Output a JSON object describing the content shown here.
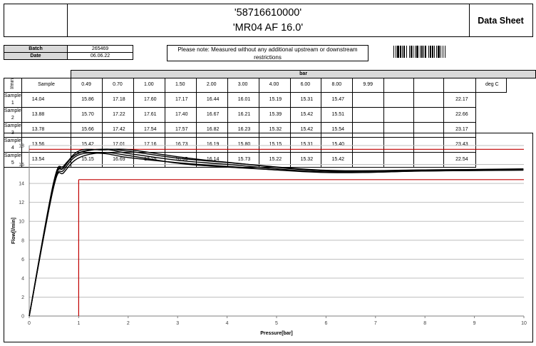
{
  "header": {
    "part_number": "'58716610000'",
    "product": "'MR04 AF 16.0'",
    "doc_type": "Data Sheet"
  },
  "info": {
    "batch_label": "Batch",
    "batch_value": "265469",
    "date_label": "Date",
    "date_value": "06.06.22",
    "note": "Please note: Measured without any additional upstream or downstream restrictions"
  },
  "table": {
    "unit_label": "bar",
    "flow_unit": "l/min",
    "sample_header": "Sample",
    "pressures": [
      "0.49",
      "0.70",
      "1.00",
      "1.50",
      "2.00",
      "3.00",
      "4.00",
      "6.00",
      "8.00",
      "9.99"
    ],
    "temp_header": "deg C",
    "rows": [
      {
        "name": "Sample 1",
        "values": [
          "14.04",
          "15.86",
          "17.18",
          "17.60",
          "17.17",
          "16.44",
          "16.01",
          "15.19",
          "15.31",
          "15.47"
        ],
        "temp": "22.17"
      },
      {
        "name": "Sample 2",
        "values": [
          "13.88",
          "15.70",
          "17.22",
          "17.61",
          "17.40",
          "16.67",
          "16.21",
          "15.39",
          "15.42",
          "15.51"
        ],
        "temp": "22.66"
      },
      {
        "name": "Sample 3",
        "values": [
          "13.78",
          "15.66",
          "17.42",
          "17.54",
          "17.57",
          "16.82",
          "16.23",
          "15.32",
          "15.42",
          "15.54"
        ],
        "temp": "23.17"
      },
      {
        "name": "Sample 4",
        "values": [
          "13.56",
          "15.42",
          "17.01",
          "17.16",
          "16.73",
          "16.19",
          "15.80",
          "15.15",
          "15.31",
          "15.40"
        ],
        "temp": "23.43"
      },
      {
        "name": "Sample 5",
        "values": [
          "13.54",
          "15.15",
          "16.69",
          "17.25",
          "16.95",
          "16.14",
          "15.73",
          "15.22",
          "15.32",
          "15.42"
        ],
        "temp": "22.54"
      }
    ]
  },
  "chart_data": {
    "type": "line",
    "title": "",
    "xlabel": "Pressure[bar]",
    "ylabel": "Flow[l/min]",
    "xlim": [
      0,
      10
    ],
    "ylim": [
      0,
      18
    ],
    "xticks": [
      "0",
      "1",
      "2",
      "3",
      "4",
      "5",
      "6",
      "7",
      "8",
      "9",
      "10"
    ],
    "yticks": [
      "0",
      "2",
      "4",
      "6",
      "8",
      "10",
      "12",
      "14",
      "16",
      "18"
    ],
    "grid": true,
    "series_color": "#000000",
    "limit_color": "#c00000",
    "series": [
      {
        "x": [
          0,
          0.49,
          0.7,
          1.0,
          1.5,
          2.0,
          3.0,
          4.0,
          6.0,
          8.0,
          9.99
        ],
        "values": [
          0,
          14.04,
          15.86,
          17.18,
          17.6,
          17.17,
          16.44,
          16.01,
          15.19,
          15.31,
          15.47
        ]
      },
      {
        "x": [
          0,
          0.49,
          0.7,
          1.0,
          1.5,
          2.0,
          3.0,
          4.0,
          6.0,
          8.0,
          9.99
        ],
        "values": [
          0,
          13.88,
          15.7,
          17.22,
          17.61,
          17.4,
          16.67,
          16.21,
          15.39,
          15.42,
          15.51
        ]
      },
      {
        "x": [
          0,
          0.49,
          0.7,
          1.0,
          1.5,
          2.0,
          3.0,
          4.0,
          6.0,
          8.0,
          9.99
        ],
        "values": [
          0,
          13.78,
          15.66,
          17.42,
          17.54,
          17.57,
          16.82,
          16.23,
          15.32,
          15.42,
          15.54
        ]
      },
      {
        "x": [
          0,
          0.49,
          0.7,
          1.0,
          1.5,
          2.0,
          3.0,
          4.0,
          6.0,
          8.0,
          9.99
        ],
        "values": [
          0,
          13.56,
          15.42,
          17.01,
          17.16,
          16.73,
          16.19,
          15.8,
          15.15,
          15.31,
          15.4
        ]
      },
      {
        "x": [
          0,
          0.49,
          0.7,
          1.0,
          1.5,
          2.0,
          3.0,
          4.0,
          6.0,
          8.0,
          9.99
        ],
        "values": [
          0,
          13.54,
          15.15,
          16.69,
          17.25,
          16.95,
          16.14,
          15.73,
          15.22,
          15.32,
          15.42
        ]
      }
    ],
    "limits": {
      "upper_flow": 17.6,
      "lower_flow": 14.4,
      "min_pressure": 1.0
    }
  }
}
